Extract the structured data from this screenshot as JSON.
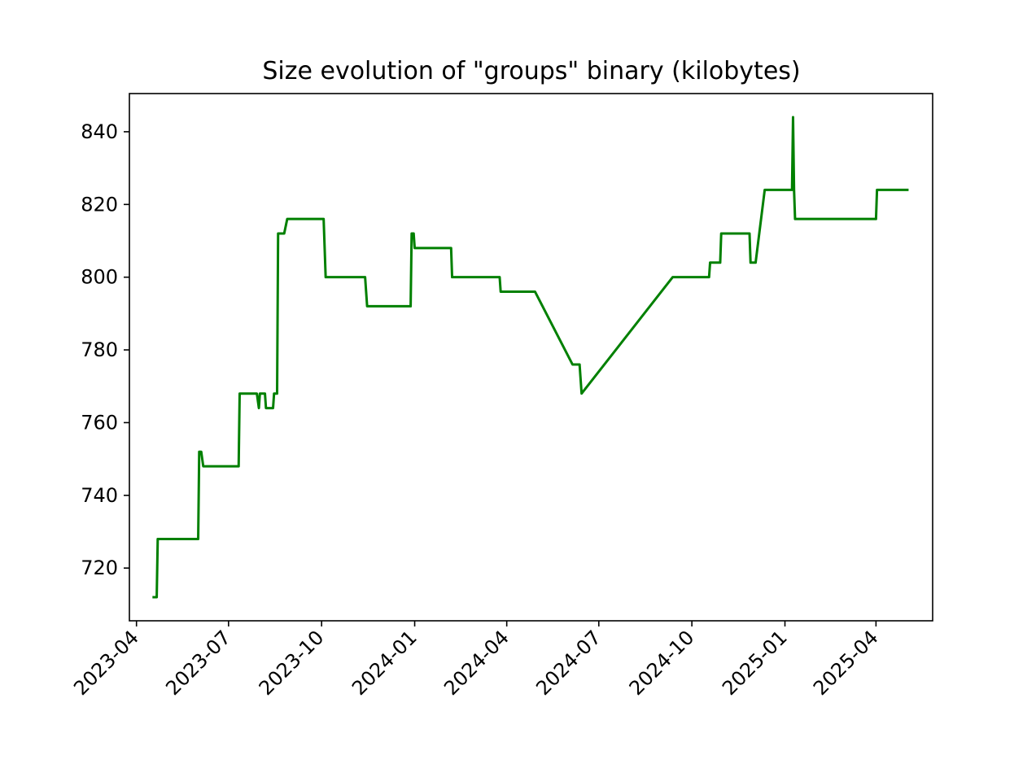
{
  "chart_data": {
    "type": "line",
    "title": "Size evolution of \"groups\" binary (kilobytes)",
    "xlabel": "",
    "ylabel": "",
    "grid": false,
    "legend": "none",
    "line_color": "#008000",
    "xlim": [
      "2023-03-25",
      "2025-05-27"
    ],
    "ylim": [
      705.5,
      850.5
    ],
    "x_ticks": [
      "2023-04-01",
      "2023-07-01",
      "2023-10-01",
      "2024-01-01",
      "2024-04-01",
      "2024-07-01",
      "2024-10-01",
      "2025-01-01",
      "2025-04-01"
    ],
    "x_tick_labels": [
      "2023-04",
      "2023-07",
      "2023-10",
      "2024-01",
      "2024-04",
      "2024-07",
      "2024-10",
      "2025-01",
      "2025-04"
    ],
    "y_ticks": [
      720,
      740,
      760,
      780,
      800,
      820,
      840
    ],
    "y_tick_labels": [
      "720",
      "740",
      "760",
      "780",
      "800",
      "820",
      "840"
    ],
    "series": [
      {
        "name": "",
        "x": [
          "2023-04-18",
          "2023-04-21",
          "2023-04-22",
          "2023-06-01",
          "2023-06-02",
          "2023-06-04",
          "2023-06-06",
          "2023-07-11",
          "2023-07-12",
          "2023-07-29",
          "2023-07-31",
          "2023-08-01",
          "2023-08-06",
          "2023-08-07",
          "2023-08-14",
          "2023-08-15",
          "2023-08-18",
          "2023-08-19",
          "2023-08-25",
          "2023-08-28",
          "2023-09-08",
          "2023-10-03",
          "2023-10-05",
          "2023-11-13",
          "2023-11-14",
          "2023-11-15",
          "2023-12-28",
          "2023-12-29",
          "2023-12-31",
          "2024-01-01",
          "2024-02-06",
          "2024-02-07",
          "2024-03-25",
          "2024-03-26",
          "2024-04-29",
          "2024-06-05",
          "2024-06-12",
          "2024-06-14",
          "2024-09-12",
          "2024-10-18",
          "2024-10-19",
          "2024-10-29",
          "2024-10-30",
          "2024-11-27",
          "2024-11-28",
          "2024-12-03",
          "2024-12-12",
          "2025-01-08",
          "2025-01-09",
          "2025-01-10",
          "2025-01-11",
          "2025-04-01",
          "2025-04-02",
          "2025-05-02"
        ],
        "values": [
          712,
          712,
          728,
          728,
          752,
          752,
          748,
          748,
          768,
          768,
          764,
          768,
          768,
          764,
          764,
          768,
          768,
          812,
          812,
          816,
          816,
          816,
          800,
          800,
          796,
          792,
          792,
          812,
          812,
          808,
          808,
          800,
          800,
          796,
          796,
          776,
          776,
          768,
          800,
          800,
          804,
          804,
          812,
          812,
          804,
          804,
          824,
          824,
          844,
          824,
          816,
          816,
          824,
          824
        ]
      }
    ]
  }
}
